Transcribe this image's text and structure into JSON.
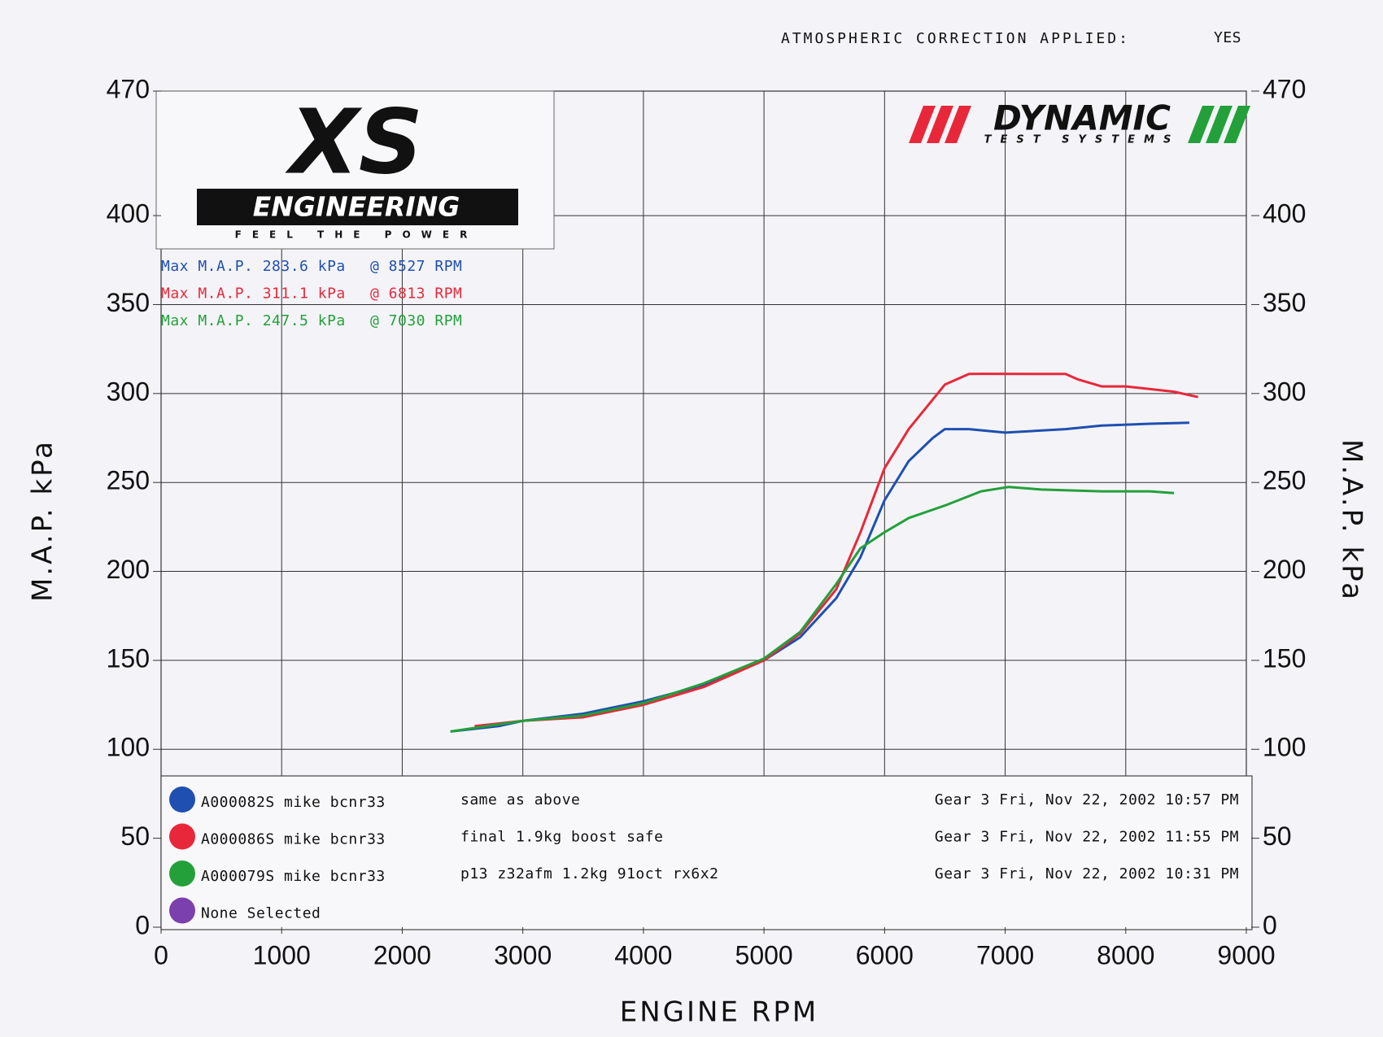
{
  "chart_data": {
    "type": "line",
    "header_label": "ATMOSPHERIC CORRECTION APPLIED:",
    "header_value": "YES",
    "x_label": "ENGINE RPM",
    "y_label": "M.A.P. kPa",
    "y2_label": "M.A.P. kPa",
    "xlim": [
      0,
      9000
    ],
    "xticks": [
      0,
      1000,
      2000,
      3000,
      4000,
      5000,
      6000,
      7000,
      8000,
      9000
    ],
    "ylim": [
      0,
      470
    ],
    "yticks": [
      0,
      50,
      100,
      150,
      200,
      250,
      300,
      350,
      400,
      470
    ],
    "y2lim": [
      0,
      470
    ],
    "y2ticks": [
      0,
      50,
      100,
      150,
      200,
      250,
      300,
      350,
      400,
      470
    ],
    "grid": true,
    "logos": {
      "left_title": "XS",
      "left_subtitle": "ENGINEERING",
      "left_tagline": "FEEL THE POWER",
      "right_title": "DYNAMIC",
      "right_subtitle": "TEST SYSTEMS"
    },
    "series": [
      {
        "name": "A000082S mike bcnr33",
        "color": "#1f4fb0",
        "note": "same as above",
        "run_info": "Gear 3 Fri, Nov 22, 2002 10:57 PM",
        "max_label": "Max M.A.P. 283.6 kPa",
        "max_rpm_label": "@ 8527 RPM",
        "x": [
          2400,
          2800,
          3000,
          3500,
          4000,
          4500,
          5000,
          5300,
          5600,
          5800,
          6000,
          6200,
          6400,
          6500,
          6700,
          7000,
          7500,
          7800,
          8200,
          8527
        ],
        "values": [
          110,
          113,
          116,
          120,
          127,
          136,
          150,
          163,
          185,
          208,
          240,
          262,
          275,
          280,
          280,
          278,
          280,
          282,
          283,
          283.6
        ]
      },
      {
        "name": "A000086S mike bcnr33",
        "color": "#e8283a",
        "note": "final 1.9kg boost safe",
        "run_info": "Gear 3 Fri, Nov 22, 2002 11:55 PM",
        "max_label": "Max M.A.P. 311.1 kPa",
        "max_rpm_label": "@ 6813 RPM",
        "x": [
          2600,
          3000,
          3500,
          4000,
          4500,
          5000,
          5300,
          5600,
          5800,
          6000,
          6200,
          6500,
          6700,
          6813,
          7500,
          7600,
          7800,
          8000,
          8400,
          8600
        ],
        "values": [
          113,
          116,
          118,
          125,
          135,
          150,
          165,
          190,
          222,
          258,
          280,
          305,
          311,
          311.1,
          311,
          308,
          304,
          304,
          301,
          298
        ]
      },
      {
        "name": "A000079S mike bcnr33",
        "color": "#23a03a",
        "note": "p13 z32afm 1.2kg 91oct rx6x2",
        "run_info": "Gear 3 Fri, Nov 22, 2002 10:31 PM",
        "max_label": "Max M.A.P. 247.5 kPa",
        "max_rpm_label": "@ 7030 RPM",
        "x": [
          2400,
          3000,
          3500,
          4000,
          4500,
          5000,
          5300,
          5600,
          5800,
          6000,
          6200,
          6500,
          6800,
          7030,
          7300,
          7800,
          8200,
          8400
        ],
        "values": [
          110,
          116,
          119,
          126,
          137,
          151,
          166,
          193,
          213,
          222,
          230,
          237,
          245,
          247.5,
          246,
          245,
          245,
          244
        ]
      }
    ],
    "empty_slot": {
      "name": "None Selected",
      "color": "#7b3fae"
    }
  }
}
